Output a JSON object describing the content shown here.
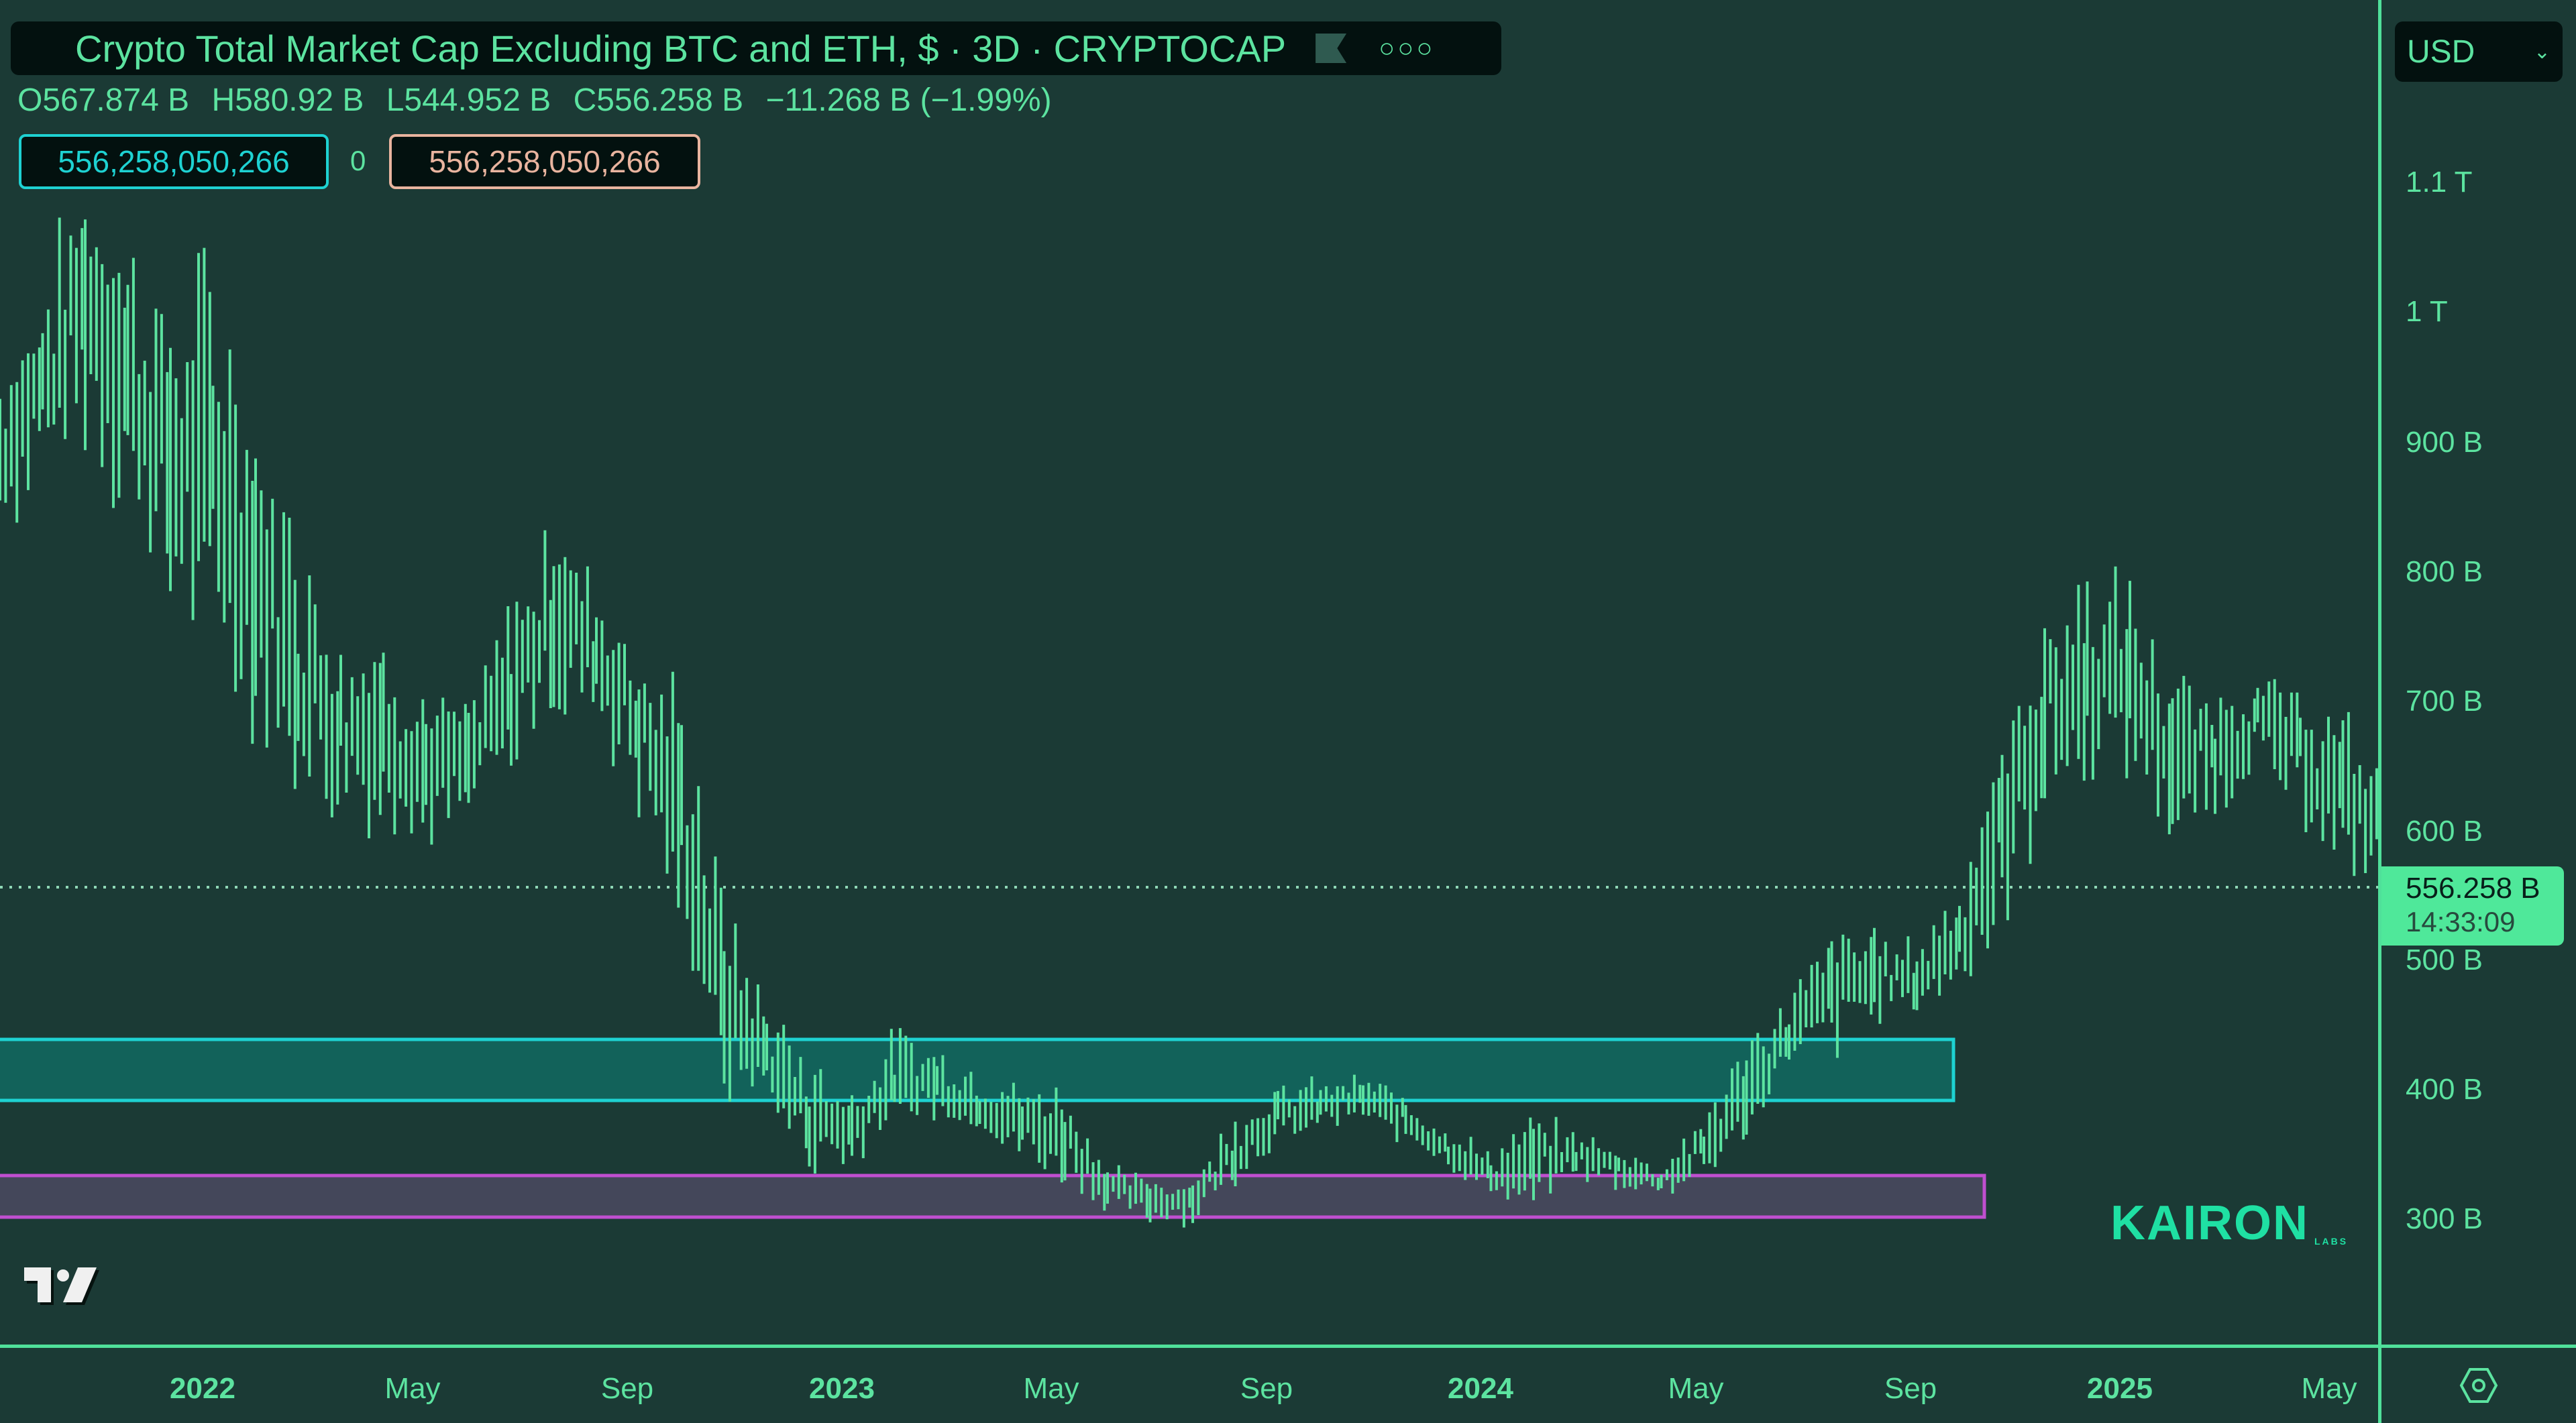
{
  "header": {
    "title": "Crypto Total Market Cap Excluding BTC and ETH, $ · 3D · CRYPTOCAP",
    "flag_icon": "flag-icon",
    "more_icon": "more-horizontal-icon",
    "ohlc": {
      "open": "O567.874 B",
      "high": "H580.92 B",
      "low": "L544.952 B",
      "close": "C556.258 B",
      "change": "−11.268 B (−1.99%)"
    },
    "value_boxes": {
      "left": "556,258,050,266",
      "separator": "0",
      "right": "556,258,050,266"
    }
  },
  "currency_selector": {
    "value": "USD",
    "icon": "chevron-down-icon"
  },
  "price_label": {
    "price": "556.258 B",
    "countdown": "14:33:09"
  },
  "settings_icon": "settings-hex-icon",
  "watermark": {
    "brand": "KAIRON",
    "sub": "LABS"
  },
  "colors": {
    "background": "#1b3a35",
    "bars": "#5ce3a0",
    "axis_line": "#4fe09a",
    "zone_upper_border": "#1ed2d2",
    "zone_upper_fill": "#12625a",
    "zone_lower_border": "#c04fd0",
    "zone_lower_fill": "#44475a",
    "price_tag": "#4fe89a"
  },
  "chart_data": {
    "type": "bar",
    "subtype": "ohlc-range (high-low) bars, 3D interval",
    "title": "Crypto Total Market Cap Excluding BTC and ETH, $ · 3D · CRYPTOCAP",
    "xlabel": "",
    "ylabel": "USD",
    "y_ticks": [
      "1.1 T",
      "1 T",
      "900 B",
      "800 B",
      "700 B",
      "600 B",
      "500 B",
      "400 B",
      "300 B"
    ],
    "y_tick_values_B": [
      1100,
      1000,
      900,
      800,
      700,
      600,
      500,
      400,
      300
    ],
    "x_ticks": [
      "2022",
      "May",
      "Sep",
      "2023",
      "May",
      "Sep",
      "2024",
      "May",
      "Sep",
      "2025",
      "May"
    ],
    "ylim_B": [
      240,
      1240
    ],
    "last_price_B": 556.258,
    "zones": [
      {
        "name": "upper support zone",
        "low_B": 395,
        "high_B": 442,
        "color": "#1ed2d2",
        "x_end_label": "≈Oct 2024"
      },
      {
        "name": "lower support zone",
        "low_B": 305,
        "high_B": 338,
        "color": "#c04fd0",
        "x_end_label": "≈Oct 2024"
      }
    ],
    "series": [
      {
        "name": "high-low range (B)",
        "points": [
          [
            0.0,
            840,
            950
          ],
          [
            0.05,
            880,
            1010
          ],
          [
            0.1,
            920,
            1100
          ],
          [
            0.15,
            860,
            1050
          ],
          [
            0.2,
            780,
            990
          ],
          [
            0.25,
            760,
            1020
          ],
          [
            0.3,
            700,
            900
          ],
          [
            0.35,
            640,
            820
          ],
          [
            0.4,
            600,
            760
          ],
          [
            0.45,
            620,
            740
          ],
          [
            0.5,
            600,
            700
          ],
          [
            0.55,
            620,
            690
          ],
          [
            0.6,
            650,
            770
          ],
          [
            0.65,
            700,
            840
          ],
          [
            0.7,
            690,
            790
          ],
          [
            0.75,
            620,
            740
          ],
          [
            0.8,
            540,
            690
          ],
          [
            0.85,
            400,
            540
          ],
          [
            0.9,
            400,
            460
          ],
          [
            0.95,
            340,
            420
          ],
          [
            1.0,
            340,
            400
          ],
          [
            1.05,
            380,
            440
          ],
          [
            1.1,
            380,
            430
          ],
          [
            1.15,
            370,
            410
          ],
          [
            1.2,
            350,
            400
          ],
          [
            1.25,
            330,
            400
          ],
          [
            1.3,
            310,
            340
          ],
          [
            1.35,
            300,
            330
          ],
          [
            1.4,
            300,
            330
          ],
          [
            1.45,
            330,
            380
          ],
          [
            1.5,
            360,
            400
          ],
          [
            1.55,
            370,
            405
          ],
          [
            1.6,
            380,
            408
          ],
          [
            1.65,
            360,
            395
          ],
          [
            1.7,
            340,
            370
          ],
          [
            1.75,
            320,
            350
          ],
          [
            1.8,
            315,
            375
          ],
          [
            1.85,
            335,
            365
          ],
          [
            1.9,
            325,
            355
          ],
          [
            1.95,
            320,
            340
          ],
          [
            2.0,
            330,
            380
          ],
          [
            2.05,
            370,
            430
          ],
          [
            2.1,
            420,
            470
          ],
          [
            2.15,
            430,
            520
          ],
          [
            2.2,
            460,
            520
          ],
          [
            2.25,
            460,
            510
          ],
          [
            2.3,
            480,
            560
          ],
          [
            2.35,
            540,
            660
          ],
          [
            2.4,
            620,
            760
          ],
          [
            2.45,
            650,
            790
          ],
          [
            2.5,
            660,
            780
          ],
          [
            2.55,
            600,
            710
          ],
          [
            2.6,
            620,
            700
          ],
          [
            2.65,
            650,
            720
          ],
          [
            2.7,
            620,
            700
          ],
          [
            2.75,
            580,
            680
          ],
          [
            2.8,
            560,
            640
          ],
          [
            2.85,
            600,
            660
          ],
          [
            2.9,
            570,
            610
          ]
        ],
        "x_note": "x in years since Jan 2022 (approx.); [x, low_B, high_B]"
      }
    ],
    "grid": false,
    "legend": "none"
  }
}
